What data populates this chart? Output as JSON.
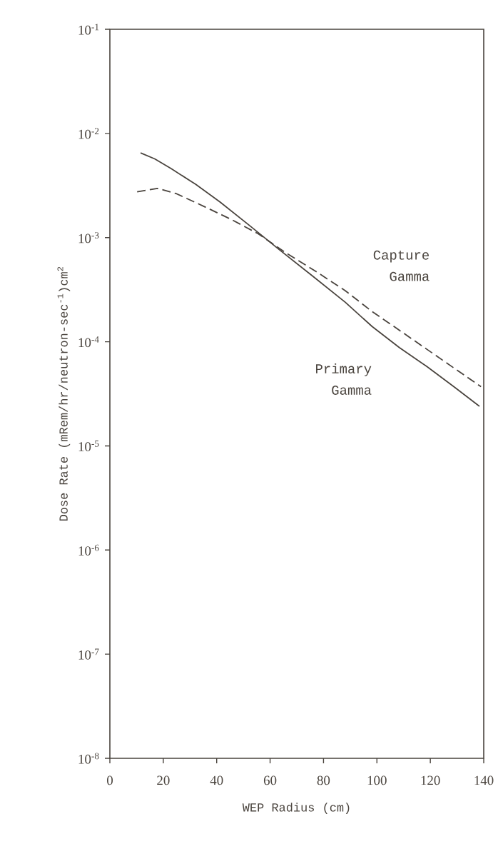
{
  "chart_data": {
    "type": "line",
    "xlabel": "WEP Radius (cm)",
    "ylabel": "Dose Rate (mRem/hr/neutron-sec$^{-1}$)cm$^{2}$",
    "log": "y",
    "grid": false,
    "legend": false,
    "marker": "none",
    "xlim": [
      0,
      140
    ],
    "xticks": [
      0,
      20,
      40,
      60,
      80,
      100,
      120,
      140
    ],
    "ylim": [
      1e-08,
      0.1
    ],
    "yticks": [
      {
        "value": 1e-08,
        "label": "10$^{-8}$"
      },
      {
        "value": 1e-07,
        "label": "10$^{-7}$"
      },
      {
        "value": 1e-06,
        "label": "10$^{-6}$"
      },
      {
        "value": 1e-05,
        "label": "10$^{-5}$"
      },
      {
        "value": 0.0001,
        "label": "10$^{-4}$"
      },
      {
        "value": 0.001,
        "label": "10$^{-3}$"
      },
      {
        "value": 0.01,
        "label": "10$^{-2}$"
      },
      {
        "value": 0.1,
        "label": "10$^{-1}$"
      }
    ],
    "series": [
      {
        "name": "Primary Gamma",
        "color": "#4a443e",
        "line_style": "solid",
        "x": [
          11.5,
          16.8,
          22.9,
          32.1,
          41.2,
          52.4,
          63.6,
          75.8,
          88.1,
          98.2,
          108.4,
          118.6,
          128.8,
          138.4
        ],
        "values": [
          0.0065,
          0.0057,
          0.0046,
          0.00325,
          0.0022,
          0.0013,
          0.00076,
          0.00043,
          0.00024,
          0.00014,
          8.8e-05,
          5.8e-05,
          3.7e-05,
          2.4e-05
        ]
      },
      {
        "name": "Capture Gamma",
        "color": "#4a443e",
        "line_style": "dashed",
        "x": [
          10.2,
          17.8,
          24.9,
          35.1,
          45.3,
          55.5,
          65.7,
          77.9,
          88.1,
          98.2,
          108.4,
          118.6,
          128.8,
          139
        ],
        "values": [
          0.00275,
          0.00297,
          0.00264,
          0.002,
          0.0015,
          0.00109,
          0.00072,
          0.00046,
          0.00031,
          0.000195,
          0.000129,
          8.5e-05,
          5.6e-05,
          3.7e-05
        ]
      }
    ]
  }
}
